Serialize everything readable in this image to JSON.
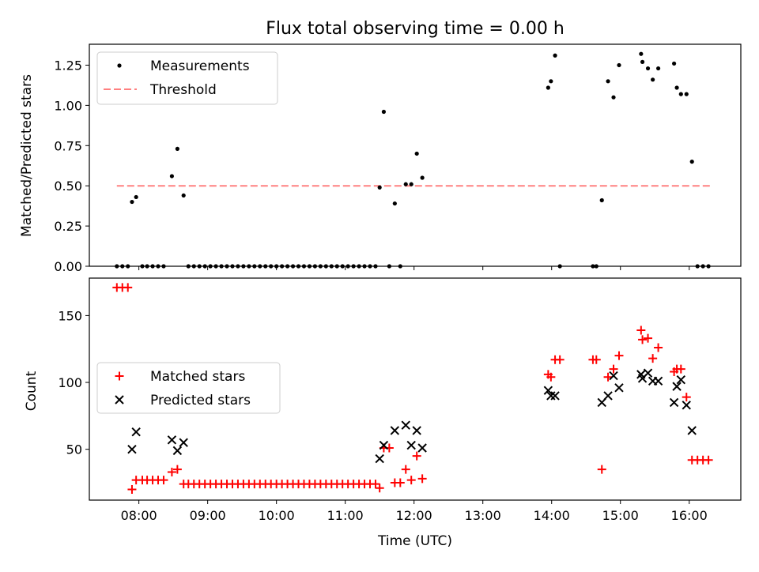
{
  "chart_data": [
    {
      "type": "scatter",
      "title": "Flux total observing time = 0.00 h",
      "xlabel": "",
      "ylabel": "Matched/Predicted stars",
      "xlim": [
        7.28,
        16.75
      ],
      "ylim": [
        0,
        1.38
      ],
      "yticks": [
        0,
        0.25,
        0.5,
        0.75,
        1.0,
        1.25
      ],
      "ytick_labels": [
        "0.00",
        "0.25",
        "0.50",
        "0.75",
        "1.00",
        "1.25"
      ],
      "legend": [
        "Measurements",
        "Threshold"
      ],
      "legend_position": "upper-left",
      "threshold": {
        "name": "Threshold",
        "value": 0.5,
        "x_range": [
          7.68,
          16.33
        ],
        "color": "#ff8080"
      },
      "series": [
        {
          "name": "Measurements",
          "marker": "dot",
          "color": "#000000",
          "points": [
            [
              7.68,
              0
            ],
            [
              7.76,
              0
            ],
            [
              7.84,
              0
            ],
            [
              7.9,
              0.4
            ],
            [
              7.96,
              0.43
            ],
            [
              8.05,
              0
            ],
            [
              8.12,
              0
            ],
            [
              8.2,
              0
            ],
            [
              8.28,
              0
            ],
            [
              8.36,
              0
            ],
            [
              8.48,
              0.56
            ],
            [
              8.56,
              0.73
            ],
            [
              8.65,
              0.44
            ],
            [
              8.72,
              0
            ],
            [
              8.8,
              0
            ],
            [
              8.88,
              0
            ],
            [
              8.96,
              0
            ],
            [
              9.04,
              0
            ],
            [
              9.12,
              0
            ],
            [
              9.2,
              0
            ],
            [
              9.28,
              0
            ],
            [
              9.36,
              0
            ],
            [
              9.44,
              0
            ],
            [
              9.52,
              0
            ],
            [
              9.6,
              0
            ],
            [
              9.68,
              0
            ],
            [
              9.76,
              0
            ],
            [
              9.84,
              0
            ],
            [
              9.92,
              0
            ],
            [
              10.0,
              0
            ],
            [
              10.08,
              0
            ],
            [
              10.16,
              0
            ],
            [
              10.24,
              0
            ],
            [
              10.32,
              0
            ],
            [
              10.4,
              0
            ],
            [
              10.48,
              0
            ],
            [
              10.56,
              0
            ],
            [
              10.64,
              0
            ],
            [
              10.72,
              0
            ],
            [
              10.8,
              0
            ],
            [
              10.88,
              0
            ],
            [
              10.96,
              0
            ],
            [
              11.04,
              0
            ],
            [
              11.12,
              0
            ],
            [
              11.2,
              0
            ],
            [
              11.28,
              0
            ],
            [
              11.36,
              0
            ],
            [
              11.44,
              0
            ],
            [
              11.5,
              0.49
            ],
            [
              11.56,
              0.96
            ],
            [
              11.64,
              0
            ],
            [
              11.72,
              0.39
            ],
            [
              11.8,
              0
            ],
            [
              11.88,
              0.51
            ],
            [
              11.96,
              0.51
            ],
            [
              12.04,
              0.7
            ],
            [
              12.12,
              0.55
            ],
            [
              13.95,
              1.11
            ],
            [
              13.99,
              1.15
            ],
            [
              14.05,
              1.31
            ],
            [
              14.12,
              0
            ],
            [
              14.6,
              0
            ],
            [
              14.65,
              0
            ],
            [
              14.73,
              0.41
            ],
            [
              14.82,
              1.15
            ],
            [
              14.9,
              1.05
            ],
            [
              14.98,
              1.25
            ],
            [
              15.3,
              1.32
            ],
            [
              15.32,
              1.27
            ],
            [
              15.4,
              1.23
            ],
            [
              15.47,
              1.16
            ],
            [
              15.55,
              1.23
            ],
            [
              15.78,
              1.26
            ],
            [
              15.82,
              1.11
            ],
            [
              15.88,
              1.07
            ],
            [
              15.96,
              1.07
            ],
            [
              16.04,
              0.65
            ],
            [
              16.12,
              0
            ],
            [
              16.2,
              0
            ],
            [
              16.28,
              0
            ]
          ]
        }
      ]
    },
    {
      "type": "scatter",
      "title": "",
      "xlabel": "Time (UTC)",
      "ylabel": "Count",
      "xlim": [
        7.28,
        16.75
      ],
      "ylim": [
        12,
        178
      ],
      "yticks": [
        50,
        100,
        150
      ],
      "ytick_labels": [
        "50",
        "100",
        "150"
      ],
      "xticks": [
        8,
        9,
        10,
        11,
        12,
        13,
        14,
        15,
        16
      ],
      "xtick_labels": [
        "08:00",
        "09:00",
        "10:00",
        "11:00",
        "12:00",
        "13:00",
        "14:00",
        "15:00",
        "16:00"
      ],
      "legend": [
        "Matched stars",
        "Predicted stars"
      ],
      "legend_position": "center-left",
      "series": [
        {
          "name": "Matched stars",
          "marker": "plus",
          "color": "#ff0000",
          "points": [
            [
              7.68,
              171
            ],
            [
              7.76,
              171
            ],
            [
              7.84,
              171
            ],
            [
              7.9,
              20
            ],
            [
              7.96,
              27
            ],
            [
              8.05,
              27
            ],
            [
              8.12,
              27
            ],
            [
              8.2,
              27
            ],
            [
              8.28,
              27
            ],
            [
              8.36,
              27
            ],
            [
              8.48,
              33
            ],
            [
              8.56,
              35
            ],
            [
              8.65,
              24
            ],
            [
              8.72,
              24
            ],
            [
              8.8,
              24
            ],
            [
              8.88,
              24
            ],
            [
              8.96,
              24
            ],
            [
              9.04,
              24
            ],
            [
              9.12,
              24
            ],
            [
              9.2,
              24
            ],
            [
              9.28,
              24
            ],
            [
              9.36,
              24
            ],
            [
              9.44,
              24
            ],
            [
              9.52,
              24
            ],
            [
              9.6,
              24
            ],
            [
              9.68,
              24
            ],
            [
              9.76,
              24
            ],
            [
              9.84,
              24
            ],
            [
              9.92,
              24
            ],
            [
              10.0,
              24
            ],
            [
              10.08,
              24
            ],
            [
              10.16,
              24
            ],
            [
              10.24,
              24
            ],
            [
              10.32,
              24
            ],
            [
              10.4,
              24
            ],
            [
              10.48,
              24
            ],
            [
              10.56,
              24
            ],
            [
              10.64,
              24
            ],
            [
              10.72,
              24
            ],
            [
              10.8,
              24
            ],
            [
              10.88,
              24
            ],
            [
              10.96,
              24
            ],
            [
              11.04,
              24
            ],
            [
              11.12,
              24
            ],
            [
              11.2,
              24
            ],
            [
              11.28,
              24
            ],
            [
              11.36,
              24
            ],
            [
              11.44,
              24
            ],
            [
              11.5,
              21
            ],
            [
              11.56,
              51
            ],
            [
              11.64,
              51
            ],
            [
              11.72,
              25
            ],
            [
              11.8,
              25
            ],
            [
              11.88,
              35
            ],
            [
              11.96,
              27
            ],
            [
              12.04,
              45
            ],
            [
              12.12,
              28
            ],
            [
              13.95,
              106
            ],
            [
              13.99,
              104
            ],
            [
              14.05,
              117
            ],
            [
              14.12,
              117
            ],
            [
              14.6,
              117
            ],
            [
              14.65,
              117
            ],
            [
              14.73,
              35
            ],
            [
              14.82,
              104
            ],
            [
              14.9,
              110
            ],
            [
              14.98,
              120
            ],
            [
              15.3,
              139
            ],
            [
              15.32,
              132
            ],
            [
              15.4,
              133
            ],
            [
              15.47,
              118
            ],
            [
              15.55,
              126
            ],
            [
              15.78,
              108
            ],
            [
              15.82,
              110
            ],
            [
              15.88,
              110
            ],
            [
              15.96,
              89
            ],
            [
              16.04,
              42
            ],
            [
              16.12,
              42
            ],
            [
              16.2,
              42
            ],
            [
              16.28,
              42
            ]
          ]
        },
        {
          "name": "Predicted stars",
          "marker": "x",
          "color": "#000000",
          "points": [
            [
              7.9,
              50
            ],
            [
              7.96,
              63
            ],
            [
              8.48,
              57
            ],
            [
              8.56,
              49
            ],
            [
              8.65,
              55
            ],
            [
              11.5,
              43
            ],
            [
              11.56,
              53
            ],
            [
              11.72,
              64
            ],
            [
              11.88,
              68
            ],
            [
              11.96,
              53
            ],
            [
              12.04,
              64
            ],
            [
              12.12,
              51
            ],
            [
              13.95,
              94
            ],
            [
              13.99,
              90
            ],
            [
              14.05,
              90
            ],
            [
              14.73,
              85
            ],
            [
              14.82,
              90
            ],
            [
              14.9,
              105
            ],
            [
              14.98,
              96
            ],
            [
              15.3,
              106
            ],
            [
              15.32,
              103
            ],
            [
              15.4,
              107
            ],
            [
              15.47,
              101
            ],
            [
              15.55,
              101
            ],
            [
              15.78,
              85
            ],
            [
              15.82,
              97
            ],
            [
              15.88,
              102
            ],
            [
              15.96,
              83
            ],
            [
              16.04,
              64
            ]
          ]
        }
      ]
    }
  ]
}
